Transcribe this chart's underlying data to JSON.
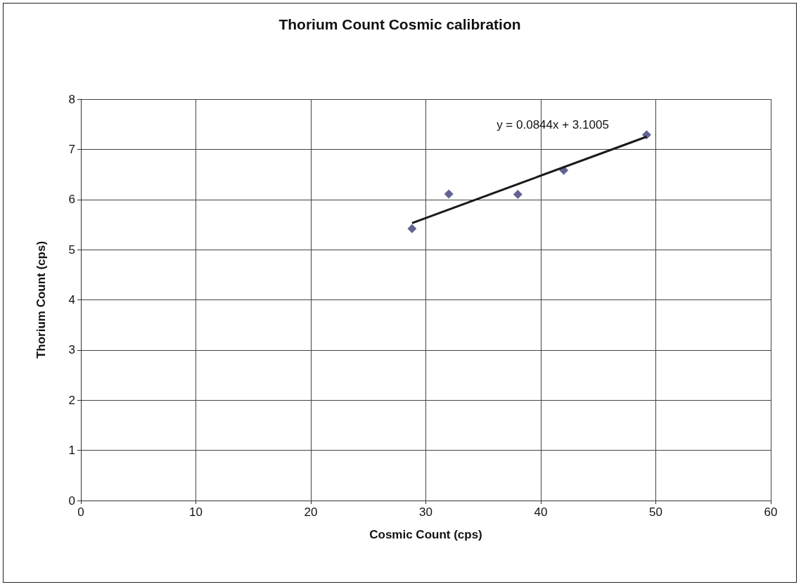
{
  "chart_data": {
    "type": "scatter",
    "title": "Thorium Count Cosmic calibration",
    "xlabel": "Cosmic Count (cps)",
    "ylabel": "Thorium Count (cps)",
    "x": [
      28.8,
      32,
      38,
      42,
      49.2
    ],
    "series": [
      {
        "type": "scatter",
        "color": "#3c3c78",
        "marker": "diamond",
        "values": [
          5.42,
          6.11,
          6.1,
          6.58,
          7.29
        ]
      },
      {
        "type": "line",
        "color": "#1a1a1a",
        "marker": "none",
        "x": [
          28.8,
          49.2
        ],
        "values": [
          5.53,
          7.25
        ]
      }
    ],
    "annotations": [
      "y = 0.0844x + 3.1005"
    ],
    "xlim": [
      0,
      60
    ],
    "xticks": [
      0,
      10,
      20,
      30,
      40,
      50,
      60
    ],
    "ylim": [
      0,
      8
    ],
    "yticks": [
      0,
      1,
      2,
      3,
      4,
      5,
      6,
      7,
      8
    ],
    "grid": true
  }
}
